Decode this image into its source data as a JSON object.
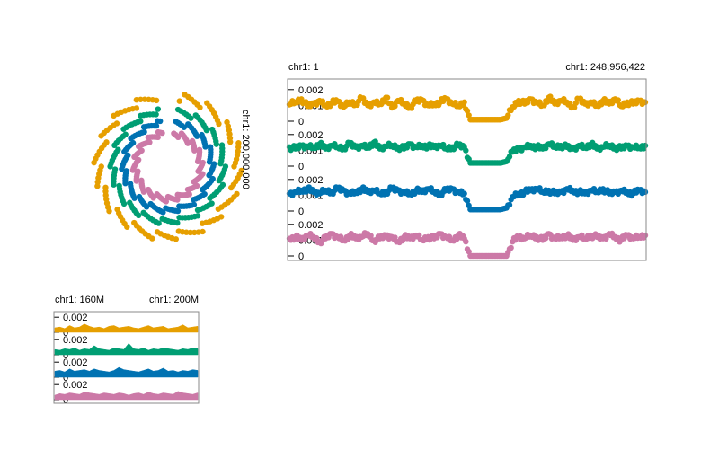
{
  "colors": [
    "#E69F00",
    "#009E73",
    "#0072B2",
    "#CC79A7"
  ],
  "circular": {
    "position_label": "chr1: 200,000,000"
  },
  "linear": {
    "start_label": "chr1: 1",
    "end_label": "chr1: 248,956,422",
    "tick_labels": [
      "0.002",
      "0.001",
      "0"
    ]
  },
  "zoom": {
    "start_label": "chr1: 160M",
    "end_label": "chr1: 200M",
    "tick_labels": [
      "0.002",
      "0"
    ]
  },
  "chart_data": [
    {
      "type": "scatter",
      "layout": "circular",
      "series_colors": [
        "#E69F00",
        "#009E73",
        "#0072B2",
        "#CC79A7"
      ],
      "annotation": "chr1: 200,000,000"
    },
    {
      "type": "scatter",
      "layout": "linear",
      "x_range": [
        1,
        248956422
      ],
      "x_labels": [
        "chr1: 1",
        "chr1: 248,956,422"
      ],
      "y_ticks": [
        0,
        0.001,
        0.002
      ],
      "ylim": [
        0,
        0.0025
      ],
      "series": [
        {
          "color": "#E69F00",
          "values": [
            0.00105,
            0.0012,
            0.0014,
            0.00095,
            0.0011,
            0.0013,
            0.001,
            0.00115,
            0.00125,
            0.0009,
            0.0012,
            0.0011,
            0.00145,
            0.001,
            0.0012,
            0.0011,
            0.0015,
            0.00085,
            0.0013,
            0.0011,
            0.0009,
            0.00125,
            0.00135,
            0.001,
            0.0011,
            0.0012,
            0.0014,
            0.0011,
            0.00095,
            0.0012,
            0.0001,
            0.0001,
            0.0001,
            0.0001,
            0.0001,
            0.0001,
            0.0002,
            0.0009,
            0.0013,
            0.0011,
            0.0014,
            0.0012,
            0.001,
            0.0015,
            0.0011,
            0.0013,
            0.0012,
            0.0009,
            0.0014,
            0.0011,
            0.0012,
            0.001,
            0.0013,
            0.0011,
            0.0014,
            0.00095,
            0.0012,
            0.0011,
            0.0013,
            0.0012
          ]
        },
        {
          "color": "#009E73",
          "values": [
            0.0012,
            0.0011,
            0.0013,
            0.00125,
            0.0012,
            0.0014,
            0.0011,
            0.0013,
            0.0012,
            0.00115,
            0.0014,
            0.0012,
            0.0013,
            0.0012,
            0.0015,
            0.0011,
            0.00125,
            0.0013,
            0.0012,
            0.0011,
            0.0014,
            0.0012,
            0.0013,
            0.00125,
            0.0012,
            0.0013,
            0.0011,
            0.0012,
            0.0013,
            0.0012,
            0.0002,
            0.0002,
            0.0002,
            0.0002,
            0.0002,
            0.0002,
            0.0003,
            0.0009,
            0.0011,
            0.0012,
            0.0013,
            0.0012,
            0.0011,
            0.0014,
            0.0012,
            0.0013,
            0.0012,
            0.0011,
            0.0013,
            0.0012,
            0.0014,
            0.0011,
            0.0012,
            0.0013,
            0.0012,
            0.0011,
            0.0013,
            0.0012,
            0.0012,
            0.0013
          ]
        },
        {
          "color": "#0072B2",
          "values": [
            0.0011,
            0.0012,
            0.0013,
            0.0014,
            0.0012,
            0.0011,
            0.0013,
            0.0012,
            0.0014,
            0.0013,
            0.0011,
            0.0012,
            0.0014,
            0.0012,
            0.0013,
            0.0011,
            0.0012,
            0.0014,
            0.0013,
            0.0012,
            0.0011,
            0.0013,
            0.0012,
            0.0014,
            0.0012,
            0.0011,
            0.0013,
            0.0014,
            0.0012,
            0.0011,
            0.0001,
            0.0001,
            0.0001,
            0.0001,
            0.0001,
            0.0001,
            0.0002,
            0.0009,
            0.0011,
            0.0012,
            0.0013,
            0.0014,
            0.0012,
            0.0013,
            0.0011,
            0.0012,
            0.0014,
            0.0013,
            0.0012,
            0.0011,
            0.0013,
            0.0012,
            0.0014,
            0.0011,
            0.0012,
            0.0013,
            0.0012,
            0.0011,
            0.0013,
            0.0012
          ]
        },
        {
          "color": "#CC79A7",
          "values": [
            0.0011,
            0.0012,
            0.001,
            0.0013,
            0.0012,
            0.0009,
            0.0011,
            0.0014,
            0.0012,
            0.001,
            0.0013,
            0.0011,
            0.0012,
            0.0014,
            0.001,
            0.0011,
            0.0013,
            0.0012,
            0.0009,
            0.0012,
            0.0011,
            0.0013,
            0.001,
            0.0012,
            0.0011,
            0.0014,
            0.0012,
            0.001,
            0.0013,
            0.0011,
            0.0,
            0.0,
            0.0,
            0.0,
            0.0,
            0.0,
            0.0,
            0.0009,
            0.0012,
            0.0011,
            0.0013,
            0.0012,
            0.001,
            0.0014,
            0.0011,
            0.0012,
            0.0013,
            0.001,
            0.0012,
            0.0011,
            0.0013,
            0.0012,
            0.0011,
            0.0014,
            0.0012,
            0.001,
            0.0013,
            0.0011,
            0.0012,
            0.0013
          ]
        }
      ]
    },
    {
      "type": "area",
      "layout": "linear",
      "x_labels": [
        "chr1: 160M",
        "chr1: 200M"
      ],
      "y_ticks": [
        0,
        0.002
      ],
      "ylim": [
        0,
        0.0025
      ],
      "series": [
        {
          "color": "#E69F00",
          "values": [
            0.0006,
            0.0007,
            0.0005,
            0.0009,
            0.0006,
            0.0007,
            0.0011,
            0.0008,
            0.0006,
            0.0007,
            0.0005,
            0.0008,
            0.0009,
            0.0006,
            0.0007,
            0.0008,
            0.0006,
            0.0005,
            0.0007,
            0.0009,
            0.0006,
            0.0007,
            0.0008,
            0.0005,
            0.0006,
            0.0007,
            0.001,
            0.0006,
            0.0007,
            0.0008
          ]
        },
        {
          "color": "#009E73",
          "values": [
            0.0007,
            0.0006,
            0.0008,
            0.0007,
            0.0009,
            0.0006,
            0.0008,
            0.0007,
            0.0012,
            0.0008,
            0.0007,
            0.0006,
            0.0009,
            0.0008,
            0.0007,
            0.0015,
            0.0008,
            0.0007,
            0.0009,
            0.0006,
            0.0008,
            0.0007,
            0.0009,
            0.0008,
            0.0007,
            0.0006,
            0.0008,
            0.0007,
            0.0009,
            0.0008
          ]
        },
        {
          "color": "#0072B2",
          "values": [
            0.0008,
            0.0009,
            0.0007,
            0.0011,
            0.0008,
            0.0009,
            0.001,
            0.0008,
            0.0011,
            0.0009,
            0.0008,
            0.0007,
            0.0009,
            0.0013,
            0.001,
            0.0009,
            0.0008,
            0.0007,
            0.0009,
            0.0011,
            0.0008,
            0.0009,
            0.0012,
            0.0008,
            0.0009,
            0.0007,
            0.0009,
            0.0008,
            0.001,
            0.0009
          ]
        },
        {
          "color": "#CC79A7",
          "values": [
            0.0006,
            0.0008,
            0.0007,
            0.0009,
            0.0008,
            0.0007,
            0.001,
            0.0009,
            0.0008,
            0.0007,
            0.0009,
            0.0008,
            0.0007,
            0.0009,
            0.0008,
            0.0006,
            0.0008,
            0.0009,
            0.0007,
            0.001,
            0.0008,
            0.0007,
            0.0009,
            0.0008,
            0.0007,
            0.0011,
            0.0009,
            0.0008,
            0.0007,
            0.0009
          ]
        }
      ]
    }
  ]
}
